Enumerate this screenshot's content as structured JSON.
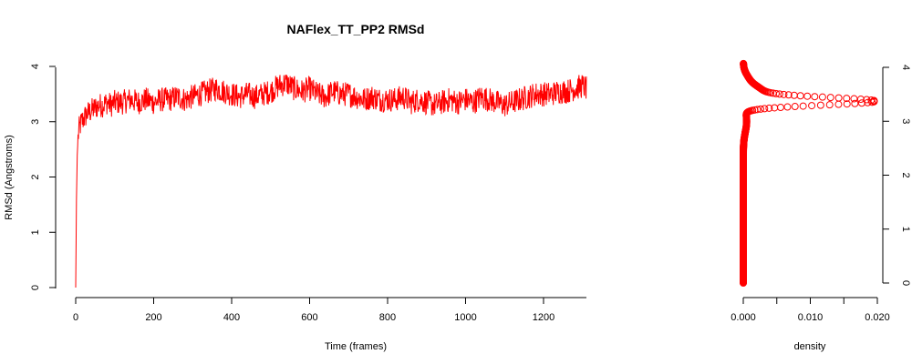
{
  "chart_data": [
    {
      "type": "line",
      "title": "NAFlex_TT_PP2 RMSd",
      "xlabel": "Time (frames)",
      "ylabel": "RMSd (Angstroms)",
      "xlim": [
        0,
        1310
      ],
      "ylim": [
        0,
        4
      ],
      "x_ticks": [
        "0",
        "200",
        "400",
        "600",
        "800",
        "1000",
        "1200"
      ],
      "y_ticks": [
        "0",
        "1",
        "2",
        "3",
        "4"
      ],
      "color": "#ff0000",
      "series": [
        {
          "x": [
            0,
            2,
            4,
            6,
            8,
            10,
            15,
            20,
            25,
            30,
            40,
            50,
            60,
            70,
            80,
            90,
            100,
            120,
            140,
            160,
            180,
            200,
            220,
            240,
            260,
            280,
            300,
            320,
            340,
            360,
            380,
            400,
            420,
            440,
            460,
            480,
            500,
            520,
            540,
            560,
            580,
            600,
            620,
            640,
            660,
            680,
            700,
            720,
            740,
            760,
            780,
            800,
            820,
            840,
            860,
            880,
            900,
            920,
            940,
            960,
            980,
            1000,
            1020,
            1040,
            1060,
            1080,
            1100,
            1120,
            1140,
            1160,
            1180,
            1200,
            1220,
            1240,
            1260,
            1280,
            1300,
            1310
          ],
          "values": [
            0.0,
            1.6,
            2.4,
            2.7,
            2.85,
            2.9,
            3.0,
            3.05,
            3.1,
            3.15,
            3.2,
            3.25,
            3.3,
            3.3,
            3.35,
            3.3,
            3.35,
            3.35,
            3.4,
            3.35,
            3.4,
            3.35,
            3.4,
            3.4,
            3.45,
            3.4,
            3.45,
            3.5,
            3.55,
            3.6,
            3.55,
            3.5,
            3.45,
            3.5,
            3.45,
            3.5,
            3.55,
            3.65,
            3.7,
            3.6,
            3.55,
            3.6,
            3.5,
            3.45,
            3.55,
            3.5,
            3.5,
            3.45,
            3.4,
            3.45,
            3.4,
            3.4,
            3.4,
            3.45,
            3.35,
            3.4,
            3.35,
            3.3,
            3.35,
            3.4,
            3.35,
            3.4,
            3.35,
            3.45,
            3.4,
            3.35,
            3.3,
            3.35,
            3.4,
            3.45,
            3.5,
            3.5,
            3.5,
            3.55,
            3.55,
            3.6,
            3.65,
            3.6
          ]
        }
      ]
    },
    {
      "type": "scatter",
      "xlabel": "density",
      "xlim": [
        0,
        0.02
      ],
      "ylim": [
        0,
        4
      ],
      "x_ticks": [
        "0.000",
        "0.010",
        "0.020"
      ],
      "y_ticks": [
        "0",
        "1",
        "2",
        "3",
        "4"
      ],
      "color": "#ff0000",
      "density_peaks": [
        {
          "mean": 3.37,
          "sd": 0.07,
          "amplitude": 0.0193
        },
        {
          "mean": 3.55,
          "sd": 0.1,
          "amplitude": 0.0025
        },
        {
          "mean": 3.75,
          "sd": 0.12,
          "amplitude": 0.0008
        },
        {
          "mean": 3.0,
          "sd": 0.2,
          "amplitude": 0.0005
        }
      ],
      "y_range": [
        0,
        4.07
      ]
    }
  ]
}
